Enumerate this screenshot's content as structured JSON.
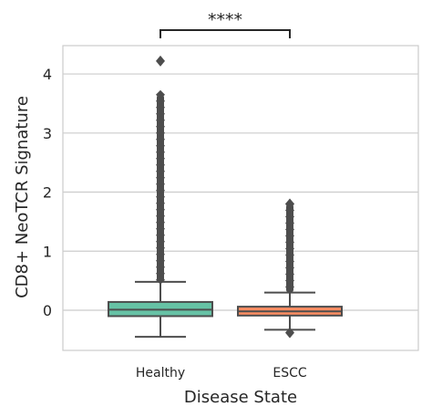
{
  "chart_data": {
    "type": "box",
    "title": "",
    "xlabel": "Disease State",
    "ylabel": "CD8+ NeoTCR Signature",
    "categories": [
      "Healthy",
      "ESCC"
    ],
    "ylim": [
      -0.68,
      4.48
    ],
    "yticks": [
      0,
      1,
      2,
      3,
      4
    ],
    "grid": "horizontal",
    "series": [
      {
        "category": "Healthy",
        "color": "#66c2a5",
        "min": -0.45,
        "q1": -0.1,
        "median": 0.01,
        "q3": 0.14,
        "max": 0.48,
        "outlier_range": [
          0.48,
          3.65
        ],
        "top_outlier": 4.22
      },
      {
        "category": "ESCC",
        "color": "#fc8d62",
        "min": -0.33,
        "q1": -0.09,
        "median": -0.02,
        "q3": 0.06,
        "max": 0.3,
        "outlier_range": [
          0.3,
          1.8
        ],
        "top_outlier": 1.8,
        "bottom_outlier": -0.38
      }
    ],
    "annotation": {
      "text": "****",
      "between": [
        "Healthy",
        "ESCC"
      ]
    }
  }
}
